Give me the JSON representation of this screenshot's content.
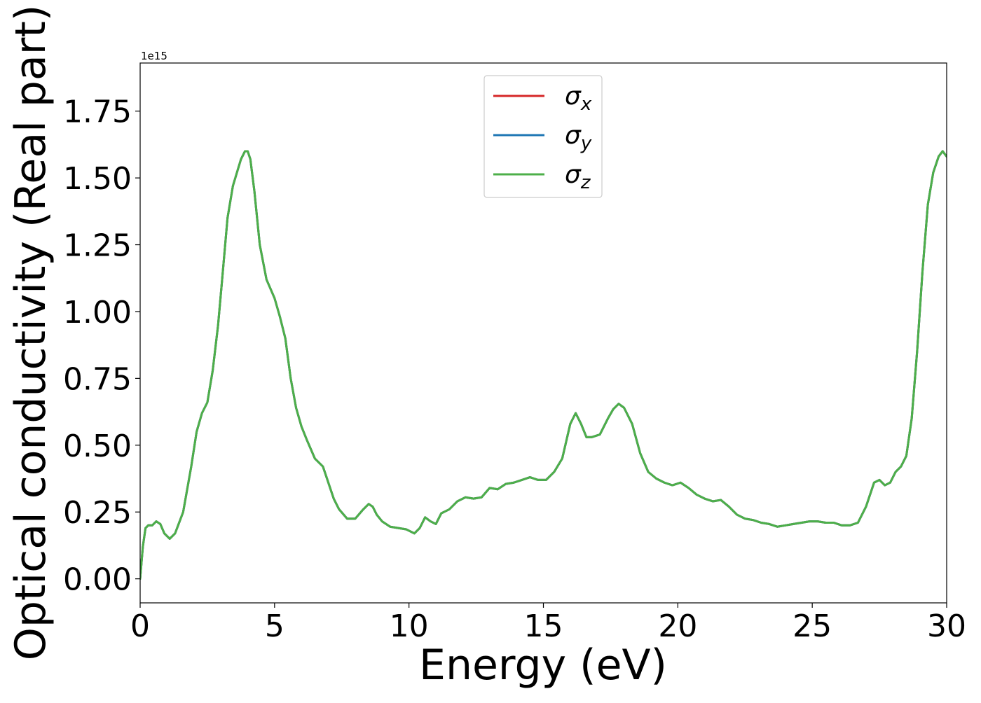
{
  "chart_data": {
    "type": "line",
    "title": "",
    "xlabel": "Energy (eV)",
    "ylabel": "Optical conductivity (Real part)",
    "y_offset_text": "1e15",
    "y_scale_factor": 1000000000000000.0,
    "xlim": [
      0,
      30
    ],
    "ylim": [
      -0.09,
      1.93
    ],
    "x_ticks": [
      0,
      5,
      10,
      15,
      20,
      25,
      30
    ],
    "x_tick_labels": [
      "0",
      "5",
      "10",
      "15",
      "20",
      "25",
      "30"
    ],
    "y_ticks": [
      0.0,
      0.25,
      0.5,
      0.75,
      1.0,
      1.25,
      1.5,
      1.75
    ],
    "y_tick_labels": [
      "0.00",
      "0.25",
      "0.50",
      "0.75",
      "1.00",
      "1.25",
      "1.50",
      "1.75"
    ],
    "grid": false,
    "legend_position": "top-center",
    "x": [
      0,
      0.1,
      0.2,
      0.3,
      0.45,
      0.6,
      0.75,
      0.9,
      1.1,
      1.3,
      1.6,
      1.9,
      2.1,
      2.3,
      2.5,
      2.7,
      2.9,
      3.05,
      3.25,
      3.45,
      3.6,
      3.75,
      3.9,
      4.0,
      4.1,
      4.25,
      4.45,
      4.7,
      5.0,
      5.2,
      5.4,
      5.6,
      5.8,
      6.0,
      6.2,
      6.5,
      6.8,
      7.0,
      7.2,
      7.4,
      7.7,
      8.0,
      8.3,
      8.5,
      8.65,
      8.8,
      9.0,
      9.3,
      9.6,
      9.9,
      10.2,
      10.4,
      10.6,
      10.8,
      11.0,
      11.2,
      11.5,
      11.8,
      12.1,
      12.4,
      12.7,
      13.0,
      13.3,
      13.6,
      13.9,
      14.2,
      14.5,
      14.8,
      15.1,
      15.4,
      15.7,
      16.0,
      16.2,
      16.4,
      16.6,
      16.8,
      17.1,
      17.4,
      17.6,
      17.8,
      18.0,
      18.3,
      18.6,
      18.9,
      19.2,
      19.5,
      19.8,
      20.1,
      20.4,
      20.7,
      21.0,
      21.3,
      21.6,
      21.9,
      22.2,
      22.5,
      22.8,
      23.1,
      23.4,
      23.7,
      24.0,
      24.3,
      24.6,
      24.9,
      25.2,
      25.5,
      25.8,
      26.1,
      26.4,
      26.7,
      27.0,
      27.3,
      27.5,
      27.7,
      27.9,
      28.1,
      28.3,
      28.5,
      28.7,
      28.9,
      29.1,
      29.3,
      29.5,
      29.7,
      29.85,
      30.0
    ],
    "series": [
      {
        "name": "σx",
        "name_base": "σ",
        "name_sub": "x",
        "color": "#d62728",
        "y": [
          0.0,
          0.12,
          0.19,
          0.2,
          0.2,
          0.215,
          0.205,
          0.17,
          0.15,
          0.17,
          0.25,
          0.42,
          0.55,
          0.62,
          0.66,
          0.78,
          0.95,
          1.12,
          1.35,
          1.47,
          1.52,
          1.57,
          1.6,
          1.6,
          1.57,
          1.45,
          1.25,
          1.12,
          1.05,
          0.98,
          0.9,
          0.75,
          0.64,
          0.57,
          0.52,
          0.45,
          0.42,
          0.36,
          0.3,
          0.26,
          0.225,
          0.225,
          0.26,
          0.28,
          0.27,
          0.24,
          0.215,
          0.195,
          0.19,
          0.185,
          0.17,
          0.19,
          0.23,
          0.215,
          0.205,
          0.245,
          0.26,
          0.29,
          0.305,
          0.3,
          0.305,
          0.34,
          0.335,
          0.355,
          0.36,
          0.37,
          0.38,
          0.37,
          0.37,
          0.4,
          0.45,
          0.58,
          0.62,
          0.58,
          0.53,
          0.53,
          0.54,
          0.6,
          0.635,
          0.655,
          0.64,
          0.58,
          0.47,
          0.4,
          0.375,
          0.36,
          0.35,
          0.36,
          0.34,
          0.315,
          0.3,
          0.29,
          0.295,
          0.27,
          0.24,
          0.225,
          0.22,
          0.21,
          0.205,
          0.195,
          0.2,
          0.205,
          0.21,
          0.215,
          0.215,
          0.21,
          0.21,
          0.2,
          0.2,
          0.21,
          0.27,
          0.36,
          0.37,
          0.35,
          0.36,
          0.4,
          0.42,
          0.46,
          0.6,
          0.85,
          1.15,
          1.4,
          1.52,
          1.58,
          1.6,
          1.58
        ]
      },
      {
        "name": "σy",
        "name_base": "σ",
        "name_sub": "y",
        "color": "#1f77b4",
        "y": [
          0.0,
          0.12,
          0.19,
          0.2,
          0.2,
          0.215,
          0.205,
          0.17,
          0.15,
          0.17,
          0.25,
          0.42,
          0.55,
          0.62,
          0.66,
          0.78,
          0.95,
          1.12,
          1.35,
          1.47,
          1.52,
          1.57,
          1.6,
          1.6,
          1.57,
          1.45,
          1.25,
          1.12,
          1.05,
          0.98,
          0.9,
          0.75,
          0.64,
          0.57,
          0.52,
          0.45,
          0.42,
          0.36,
          0.3,
          0.26,
          0.225,
          0.225,
          0.26,
          0.28,
          0.27,
          0.24,
          0.215,
          0.195,
          0.19,
          0.185,
          0.17,
          0.19,
          0.23,
          0.215,
          0.205,
          0.245,
          0.26,
          0.29,
          0.305,
          0.3,
          0.305,
          0.34,
          0.335,
          0.355,
          0.36,
          0.37,
          0.38,
          0.37,
          0.37,
          0.4,
          0.45,
          0.58,
          0.62,
          0.58,
          0.53,
          0.53,
          0.54,
          0.6,
          0.635,
          0.655,
          0.64,
          0.58,
          0.47,
          0.4,
          0.375,
          0.36,
          0.35,
          0.36,
          0.34,
          0.315,
          0.3,
          0.29,
          0.295,
          0.27,
          0.24,
          0.225,
          0.22,
          0.21,
          0.205,
          0.195,
          0.2,
          0.205,
          0.21,
          0.215,
          0.215,
          0.21,
          0.21,
          0.2,
          0.2,
          0.21,
          0.27,
          0.36,
          0.37,
          0.35,
          0.36,
          0.4,
          0.42,
          0.46,
          0.6,
          0.85,
          1.15,
          1.4,
          1.52,
          1.58,
          1.6,
          1.58
        ]
      },
      {
        "name": "σz",
        "name_base": "σ",
        "name_sub": "z",
        "color": "#4daf4a",
        "y": [
          0.0,
          0.12,
          0.19,
          0.2,
          0.2,
          0.215,
          0.205,
          0.17,
          0.15,
          0.17,
          0.25,
          0.42,
          0.55,
          0.62,
          0.66,
          0.78,
          0.95,
          1.12,
          1.35,
          1.47,
          1.52,
          1.57,
          1.6,
          1.6,
          1.57,
          1.45,
          1.25,
          1.12,
          1.05,
          0.98,
          0.9,
          0.75,
          0.64,
          0.57,
          0.52,
          0.45,
          0.42,
          0.36,
          0.3,
          0.26,
          0.225,
          0.225,
          0.26,
          0.28,
          0.27,
          0.24,
          0.215,
          0.195,
          0.19,
          0.185,
          0.17,
          0.19,
          0.23,
          0.215,
          0.205,
          0.245,
          0.26,
          0.29,
          0.305,
          0.3,
          0.305,
          0.34,
          0.335,
          0.355,
          0.36,
          0.37,
          0.38,
          0.37,
          0.37,
          0.4,
          0.45,
          0.58,
          0.62,
          0.58,
          0.53,
          0.53,
          0.54,
          0.6,
          0.635,
          0.655,
          0.64,
          0.58,
          0.47,
          0.4,
          0.375,
          0.36,
          0.35,
          0.36,
          0.34,
          0.315,
          0.3,
          0.29,
          0.295,
          0.27,
          0.24,
          0.225,
          0.22,
          0.21,
          0.205,
          0.195,
          0.2,
          0.205,
          0.21,
          0.215,
          0.215,
          0.21,
          0.21,
          0.2,
          0.2,
          0.21,
          0.27,
          0.36,
          0.37,
          0.35,
          0.36,
          0.4,
          0.42,
          0.46,
          0.6,
          0.85,
          1.15,
          1.4,
          1.52,
          1.58,
          1.6,
          1.58
        ]
      }
    ]
  }
}
